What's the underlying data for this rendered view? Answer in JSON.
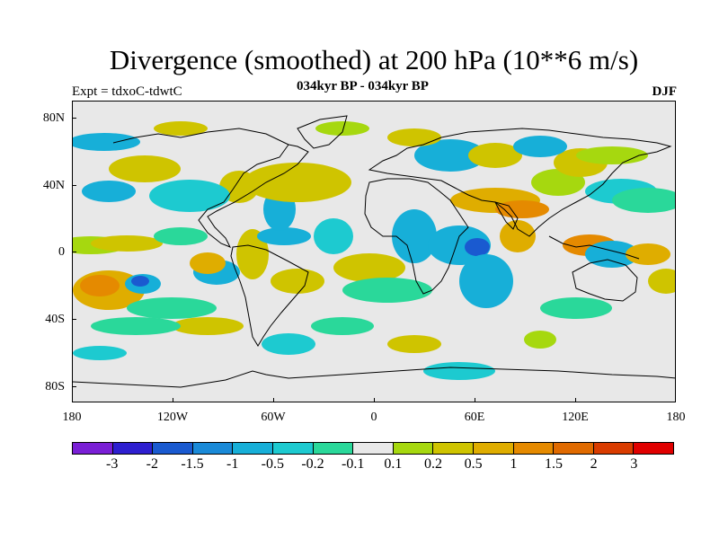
{
  "header": {
    "title": "Divergence (smoothed) at 200 hPa (10**6 m/s)",
    "subtitle": "034kyr BP - 034kyr BP",
    "expt": "Expt = tdxoC-tdwtC",
    "season": "DJF"
  },
  "map": {
    "projection": "cylindrical-equidistant",
    "lon_range": [
      -180,
      180
    ],
    "lat_range": [
      -90,
      90
    ],
    "background_color": "#e8e8e8",
    "lat_labels": [
      "80N",
      "40N",
      "0",
      "40S",
      "80S"
    ],
    "lon_labels": [
      "180",
      "120W",
      "60W",
      "0",
      "60E",
      "120E",
      "180"
    ]
  },
  "colorbar": {
    "colors": [
      "#7a1fd6",
      "#2e1fd0",
      "#1a5ad0",
      "#1a8ad8",
      "#17afd8",
      "#1dcad0",
      "#2ad89a",
      "#e8e8e8",
      "#a6d80f",
      "#cfc400",
      "#dfad00",
      "#e58a00",
      "#e06a00",
      "#d93c00",
      "#e00000"
    ],
    "labels": [
      "-3",
      "-2",
      "-1.5",
      "-1",
      "-0.5",
      "-0.2",
      "-0.1",
      "0.1",
      "0.2",
      "0.5",
      "1",
      "1.5",
      "2",
      "3"
    ]
  }
}
